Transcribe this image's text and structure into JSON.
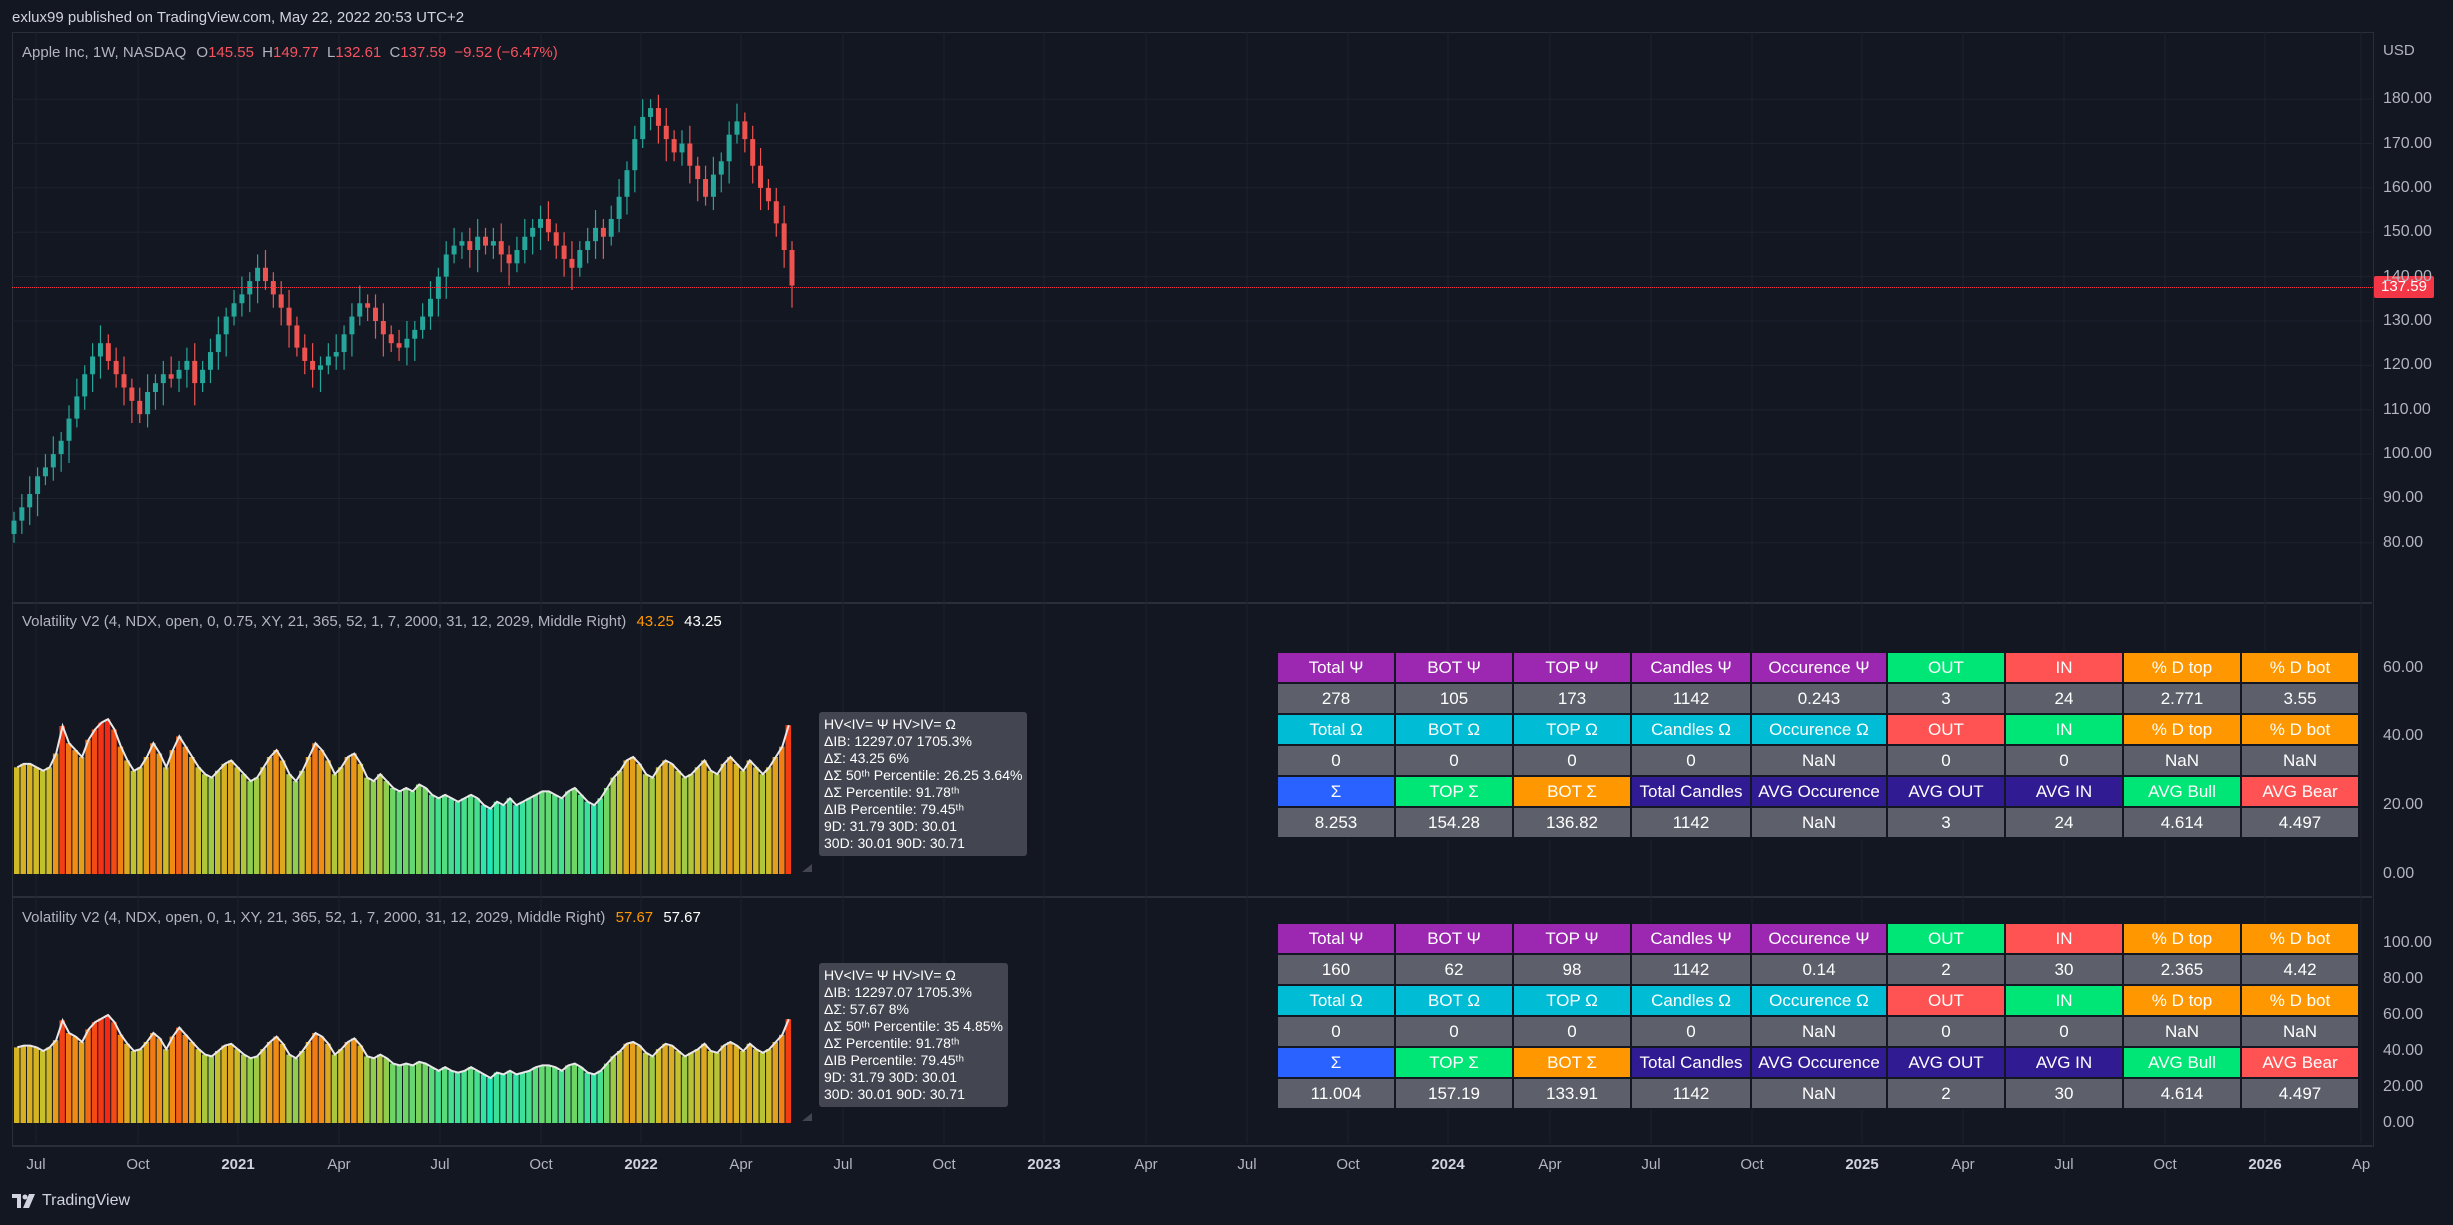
{
  "header": {
    "published_line": "exlux99 published on TradingView.com, May 22, 2022 20:53 UTC+2"
  },
  "symbol_legend": {
    "name": "Apple Inc, 1W, NASDAQ",
    "open_label": "O",
    "open": "145.55",
    "high_label": "H",
    "high": "149.77",
    "low_label": "L",
    "low": "132.61",
    "close_label": "C",
    "close": "137.59",
    "change": "−9.52 (−6.47%)"
  },
  "price_axis": {
    "currency": "USD",
    "ticks": [
      "180.00",
      "170.00",
      "160.00",
      "150.00",
      "140.00",
      "130.00",
      "120.00",
      "110.00",
      "100.00",
      "90.00",
      "80.00"
    ],
    "last_price": "137.59"
  },
  "indicator1": {
    "title": "Volatility V2 (4, NDX, open, 0, 0.75, XY, 21, 365, 52, 1, 7, 2000, 31, 12, 2029, Middle Right)",
    "value_orange": "43.25",
    "value_white": "43.25",
    "axis_ticks": [
      "60.00",
      "40.00",
      "20.00",
      "0.00"
    ],
    "stats": [
      "HV<IV= Ψ  HV>IV= Ω",
      "ΔIB: 12297.07  1705.3%",
      "ΔΣ: 43.25  6%",
      "ΔΣ 50ᵗʰ Percentile: 26.25  3.64%",
      "ΔΣ Percentile: 91.78ᵗʰ",
      "ΔIB Percentile: 79.45ᵗʰ",
      "9D: 31.79  30D: 30.01",
      "30D: 30.01  90D: 30.71"
    ],
    "table": [
      [
        "Total Ψ",
        "BOT Ψ",
        "TOP Ψ",
        "Candles Ψ",
        "Occurence Ψ",
        "OUT",
        "IN",
        "% D top",
        "% D bot"
      ],
      [
        "278",
        "105",
        "173",
        "1142",
        "0.243",
        "3",
        "24",
        "2.771",
        "3.55"
      ],
      [
        "Total Ω",
        "BOT Ω",
        "TOP Ω",
        "Candles Ω",
        "Occurence Ω",
        "OUT",
        "IN",
        "% D top",
        "% D bot"
      ],
      [
        "0",
        "0",
        "0",
        "0",
        "NaN",
        "0",
        "0",
        "NaN",
        "NaN"
      ],
      [
        "Σ",
        "TOP Σ",
        "BOT Σ",
        "Total Candles",
        "AVG Occurence",
        "AVG OUT",
        "AVG IN",
        "AVG Bull",
        "AVG Bear"
      ],
      [
        "8.253",
        "154.28",
        "136.82",
        "1142",
        "NaN",
        "3",
        "24",
        "4.614",
        "4.497"
      ]
    ]
  },
  "indicator2": {
    "title": "Volatility V2 (4, NDX, open, 0, 1, XY, 21, 365, 52, 1, 7, 2000, 31, 12, 2029, Middle Right)",
    "value_orange": "57.67",
    "value_white": "57.67",
    "axis_ticks": [
      "100.00",
      "80.00",
      "60.00",
      "40.00",
      "20.00",
      "0.00"
    ],
    "stats": [
      "HV<IV= Ψ  HV>IV= Ω",
      "ΔIB: 12297.07  1705.3%",
      "ΔΣ: 57.67  8%",
      "ΔΣ 50ᵗʰ Percentile: 35  4.85%",
      "ΔΣ Percentile: 91.78ᵗʰ",
      "ΔIB Percentile: 79.45ᵗʰ",
      "9D: 31.79  30D: 30.01",
      "30D: 30.01  90D: 30.71"
    ],
    "table": [
      [
        "Total Ψ",
        "BOT Ψ",
        "TOP Ψ",
        "Candles Ψ",
        "Occurence Ψ",
        "OUT",
        "IN",
        "% D top",
        "% D bot"
      ],
      [
        "160",
        "62",
        "98",
        "1142",
        "0.14",
        "2",
        "30",
        "2.365",
        "4.42"
      ],
      [
        "Total Ω",
        "BOT Ω",
        "TOP Ω",
        "Candles Ω",
        "Occurence Ω",
        "OUT",
        "IN",
        "% D top",
        "% D bot"
      ],
      [
        "0",
        "0",
        "0",
        "0",
        "NaN",
        "0",
        "0",
        "NaN",
        "NaN"
      ],
      [
        "Σ",
        "TOP Σ",
        "BOT Σ",
        "Total Candles",
        "AVG Occurence",
        "AVG OUT",
        "AVG IN",
        "AVG Bull",
        "AVG Bear"
      ],
      [
        "11.004",
        "157.19",
        "133.91",
        "1142",
        "NaN",
        "2",
        "30",
        "4.614",
        "4.497"
      ]
    ]
  },
  "time_axis": {
    "labels": [
      "Jul",
      "Oct",
      "2021",
      "Apr",
      "Jul",
      "Oct",
      "2022",
      "Apr",
      "Jul",
      "Oct",
      "2023",
      "Apr",
      "Jul",
      "Oct",
      "2024",
      "Apr",
      "Jul",
      "Oct",
      "2025",
      "Apr",
      "Jul",
      "Oct",
      "2026",
      "Ap"
    ],
    "bold": [
      "2021",
      "2022",
      "2023",
      "2024",
      "2025",
      "2026"
    ]
  },
  "footer": {
    "brand": "TradingView"
  },
  "colors": {
    "background": "#131722",
    "bull": "#26a69a",
    "bear": "#ef5350",
    "price_line": "#f23645"
  },
  "chart_data": [
    {
      "type": "candlestick",
      "title": "Apple Inc, 1W, NASDAQ",
      "ylabel": "USD",
      "ylim": [
        75,
        185
      ],
      "x_range": [
        "2020-06",
        "2026-04"
      ],
      "closes": [
        85,
        88,
        91,
        95,
        97,
        100,
        103,
        108,
        113,
        118,
        122,
        125,
        121,
        118,
        115,
        112,
        109,
        114,
        116,
        118,
        117,
        119,
        121,
        116,
        119,
        123,
        127,
        131,
        134,
        136,
        139,
        142,
        139,
        136,
        133,
        129,
        124,
        121,
        119,
        120,
        122,
        123,
        127,
        131,
        134,
        133,
        130,
        127,
        125,
        124,
        126,
        128,
        131,
        135,
        140,
        145,
        147,
        148,
        146,
        149,
        147,
        148,
        145,
        143,
        146,
        149,
        151,
        153,
        150,
        147,
        144,
        142,
        146,
        148,
        151,
        149,
        153,
        158,
        164,
        171,
        176,
        178,
        174,
        171,
        168,
        170,
        165,
        162,
        158,
        163,
        166,
        172,
        175,
        171,
        165,
        160,
        157,
        152,
        146,
        138
      ],
      "last_close": 137.59
    },
    {
      "type": "bar",
      "title": "Volatility V2 (4, NDX, open, 0, 0.75, XY, 21, 365, 52, 1, 7, 2000, 31, 12, 2029, Middle Right)",
      "ylim": [
        0,
        68
      ],
      "values": [
        31,
        32,
        32,
        31,
        30,
        31,
        35,
        43,
        38,
        36,
        34,
        39,
        42,
        44,
        45,
        42,
        37,
        33,
        30,
        31,
        34,
        38,
        35,
        31,
        36,
        40,
        37,
        34,
        31,
        29,
        28,
        30,
        32,
        33,
        31,
        29,
        27,
        28,
        31,
        34,
        36,
        33,
        29,
        27,
        30,
        34,
        38,
        36,
        33,
        29,
        31,
        34,
        35,
        32,
        28,
        27,
        29,
        27,
        25,
        24,
        25,
        24,
        26,
        25,
        23,
        22,
        23,
        22,
        21,
        22,
        23,
        22,
        20,
        19,
        21,
        20,
        22,
        20,
        21,
        22,
        23,
        24,
        24,
        23,
        22,
        24,
        25,
        23,
        21,
        20,
        22,
        25,
        28,
        30,
        33,
        34,
        32,
        29,
        28,
        31,
        33,
        32,
        30,
        28,
        29,
        31,
        33,
        30,
        29,
        32,
        34,
        32,
        30,
        33,
        31,
        29,
        31,
        34,
        37,
        43.25
      ],
      "last_value": 43.25
    },
    {
      "type": "bar",
      "title": "Volatility V2 (4, NDX, open, 0, 1, XY, 21, 365, 52, 1, 7, 2000, 31, 12, 2029, Middle Right)",
      "ylim": [
        0,
        105
      ],
      "values": [
        42,
        43,
        43,
        42,
        40,
        42,
        46,
        57,
        50,
        48,
        45,
        52,
        56,
        58,
        60,
        56,
        49,
        44,
        40,
        41,
        45,
        50,
        47,
        41,
        48,
        53,
        49,
        45,
        41,
        38,
        37,
        40,
        43,
        44,
        41,
        38,
        36,
        37,
        41,
        45,
        48,
        44,
        38,
        36,
        40,
        45,
        50,
        48,
        44,
        38,
        41,
        45,
        47,
        43,
        37,
        36,
        38,
        36,
        33,
        32,
        33,
        32,
        34,
        33,
        31,
        29,
        31,
        29,
        28,
        29,
        31,
        29,
        27,
        25,
        28,
        27,
        29,
        27,
        28,
        29,
        31,
        32,
        32,
        31,
        29,
        32,
        33,
        31,
        28,
        27,
        29,
        33,
        37,
        40,
        44,
        45,
        43,
        39,
        37,
        41,
        44,
        43,
        40,
        37,
        39,
        41,
        44,
        40,
        39,
        43,
        45,
        43,
        40,
        44,
        41,
        39,
        41,
        45,
        49,
        57.67
      ],
      "last_value": 57.67
    }
  ]
}
